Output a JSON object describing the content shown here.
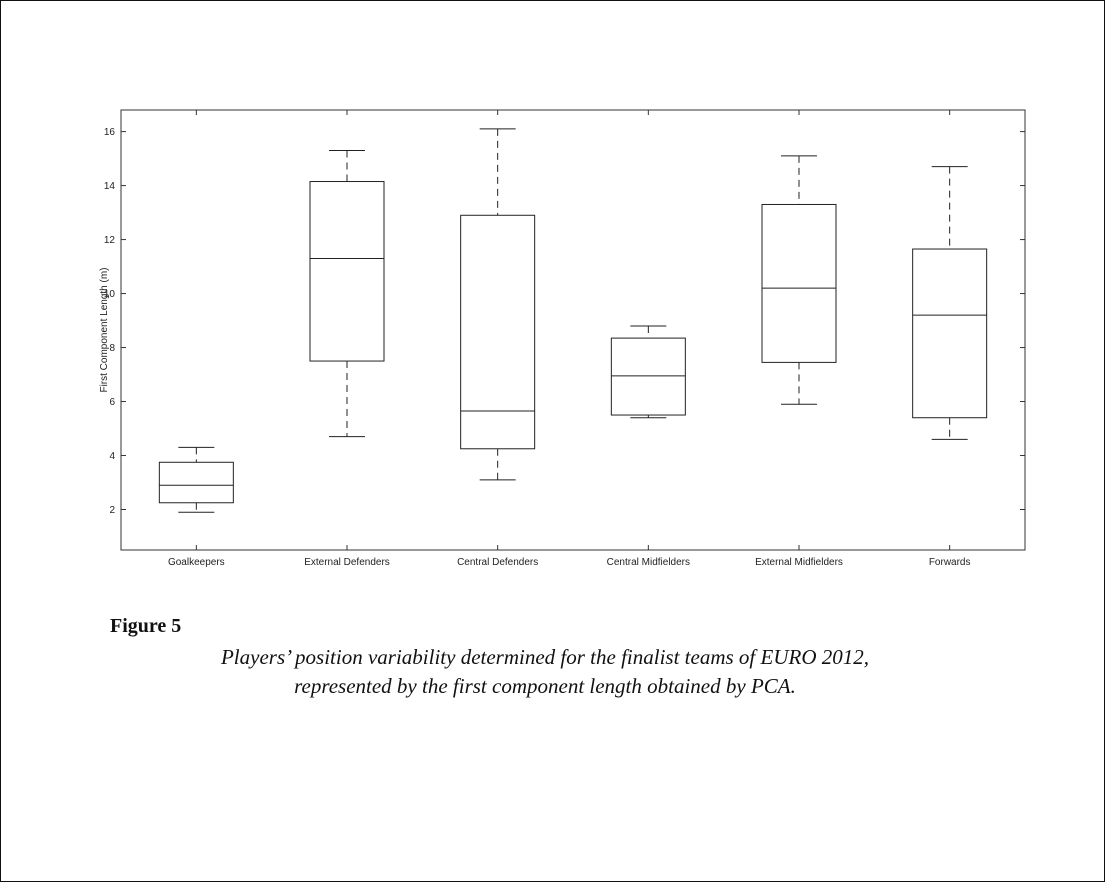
{
  "chart_data": {
    "type": "box",
    "title": "",
    "xlabel": "",
    "ylabel": "First Component Length (m)",
    "ylim": [
      0.5,
      16.8
    ],
    "yticks": [
      2,
      4,
      6,
      8,
      10,
      12,
      14,
      16
    ],
    "categories": [
      "Goalkeepers",
      "External Defenders",
      "Central Defenders",
      "Central Midfielders",
      "External Midfielders",
      "Forwards"
    ],
    "boxes": [
      {
        "whisker_low": 1.9,
        "q1": 2.25,
        "median": 2.9,
        "q3": 3.75,
        "whisker_high": 4.3
      },
      {
        "whisker_low": 4.7,
        "q1": 7.5,
        "median": 11.3,
        "q3": 14.15,
        "whisker_high": 15.3
      },
      {
        "whisker_low": 3.1,
        "q1": 4.25,
        "median": 5.65,
        "q3": 12.9,
        "whisker_high": 16.1
      },
      {
        "whisker_low": 5.4,
        "q1": 5.5,
        "median": 6.95,
        "q3": 8.35,
        "whisker_high": 8.8
      },
      {
        "whisker_low": 5.9,
        "q1": 7.45,
        "median": 10.2,
        "q3": 13.3,
        "whisker_high": 15.1
      },
      {
        "whisker_low": 4.6,
        "q1": 5.4,
        "median": 9.2,
        "q3": 11.65,
        "whisker_high": 14.7
      }
    ],
    "grid": false
  },
  "caption": {
    "label": "Figure 5",
    "line1": "Players’ position variability determined for the finalist teams of EURO 2012,",
    "line2": "represented by the first component length obtained by PCA."
  }
}
